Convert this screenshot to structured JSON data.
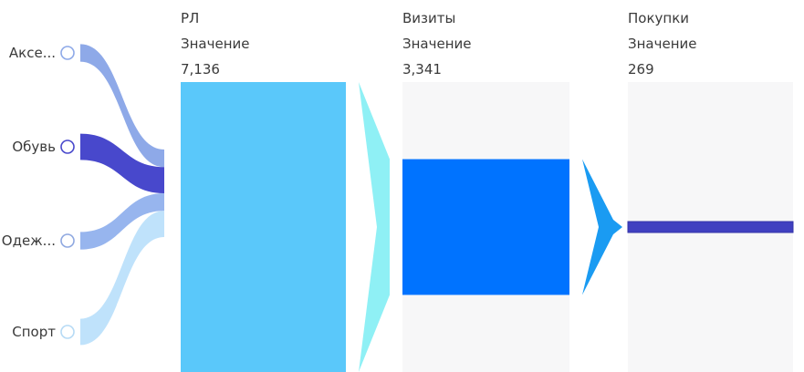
{
  "chart_data": {
    "type": "funnel",
    "categories": [
      "Аксе...",
      "Обувь",
      "Одеж...",
      "Спорт"
    ],
    "stages": [
      {
        "name": "РЛ",
        "measure": "Значение",
        "value_text": "7,136",
        "value": 7136
      },
      {
        "name": "Визиты",
        "measure": "Значение",
        "value_text": "3,341",
        "value": 3341
      },
      {
        "name": "Покупки",
        "measure": "Значение",
        "value_text": "269",
        "value": 269
      }
    ],
    "category_share": [
      0.2,
      0.3,
      0.2,
      0.3
    ]
  },
  "colors": {
    "stage_bars": [
      "#5ac8fa",
      "#0073ff",
      "#4040c0"
    ],
    "stage_backgrounds": "#f7f7f8",
    "connector_1": "#8ff0f5",
    "connector_2": "#1a9bf2",
    "ribbons": [
      "#8ea9e8",
      "#4848cc",
      "#97b5ee",
      "#bfe2fb"
    ],
    "marker_strokes": [
      "#8ea9e8",
      "#4848cc",
      "#8fa8e0",
      "#b6daf5"
    ],
    "text": "#3a3a3a"
  },
  "icons": {
    "category_marker": "circle-marker-icon"
  }
}
